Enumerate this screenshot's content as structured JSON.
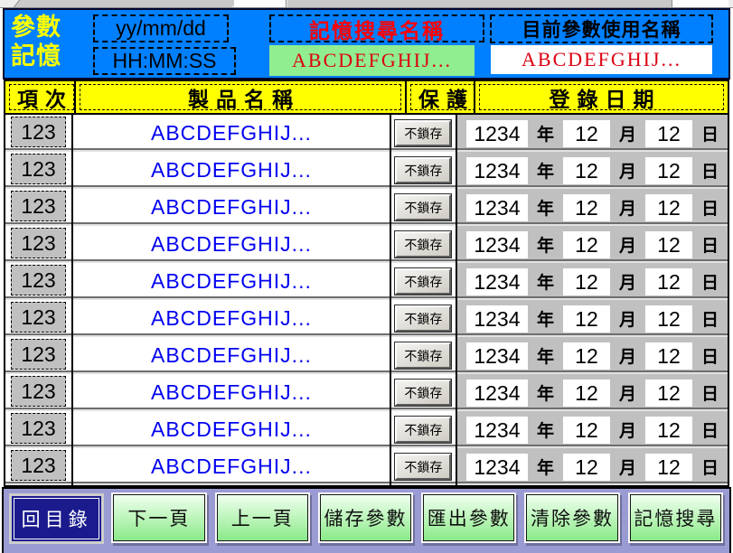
{
  "header": {
    "title_line1": "參數",
    "title_line2": "記憶",
    "date_display": "yy/mm/dd",
    "time_display": "HH:MM:SS",
    "search_name_label": "記憶搜尋名稱",
    "search_name_value": "ABCDEFGHIJ...",
    "current_name_label": "目前參數使用名稱",
    "current_name_value": "ABCDEFGHIJ..."
  },
  "table": {
    "headers": {
      "index": "項次",
      "product_name": "製品名稱",
      "protect": "保護",
      "reg_date": "登錄日期"
    },
    "date_units": {
      "year": "年",
      "month": "月",
      "day": "日"
    },
    "rows": [
      {
        "index": "123",
        "name": "ABCDEFGHIJ...",
        "protect": "不鎖存",
        "year": "1234",
        "month": "12",
        "day": "12"
      },
      {
        "index": "123",
        "name": "ABCDEFGHIJ...",
        "protect": "不鎖存",
        "year": "1234",
        "month": "12",
        "day": "12"
      },
      {
        "index": "123",
        "name": "ABCDEFGHIJ...",
        "protect": "不鎖存",
        "year": "1234",
        "month": "12",
        "day": "12"
      },
      {
        "index": "123",
        "name": "ABCDEFGHIJ...",
        "protect": "不鎖存",
        "year": "1234",
        "month": "12",
        "day": "12"
      },
      {
        "index": "123",
        "name": "ABCDEFGHIJ...",
        "protect": "不鎖存",
        "year": "1234",
        "month": "12",
        "day": "12"
      },
      {
        "index": "123",
        "name": "ABCDEFGHIJ...",
        "protect": "不鎖存",
        "year": "1234",
        "month": "12",
        "day": "12"
      },
      {
        "index": "123",
        "name": "ABCDEFGHIJ...",
        "protect": "不鎖存",
        "year": "1234",
        "month": "12",
        "day": "12"
      },
      {
        "index": "123",
        "name": "ABCDEFGHIJ...",
        "protect": "不鎖存",
        "year": "1234",
        "month": "12",
        "day": "12"
      },
      {
        "index": "123",
        "name": "ABCDEFGHIJ...",
        "protect": "不鎖存",
        "year": "1234",
        "month": "12",
        "day": "12"
      },
      {
        "index": "123",
        "name": "ABCDEFGHIJ...",
        "protect": "不鎖存",
        "year": "1234",
        "month": "12",
        "day": "12"
      }
    ]
  },
  "footer": {
    "buttons": [
      {
        "label": "回目錄"
      },
      {
        "label": "下一頁"
      },
      {
        "label": "上一頁"
      },
      {
        "label": "儲存參數"
      },
      {
        "label": "匯出參數"
      },
      {
        "label": "清除參數"
      },
      {
        "label": "記憶搜尋"
      }
    ]
  },
  "colors": {
    "header_bg": "#0080FF",
    "title_yellow": "#FFFF00",
    "table_header_bg": "#FFFF00",
    "search_label_red": "#FF0000",
    "value_text_red": "#DC0010",
    "search_value_bg": "#90EE90",
    "row_name_blue": "#0000F0",
    "index_date_silver": "#C0C0C0",
    "footer_bg": "#9B9BD3",
    "menu_button_navy": "#1B1B8E",
    "green_button_top": "#EFFFEF",
    "green_button_bottom": "#8AE988"
  }
}
